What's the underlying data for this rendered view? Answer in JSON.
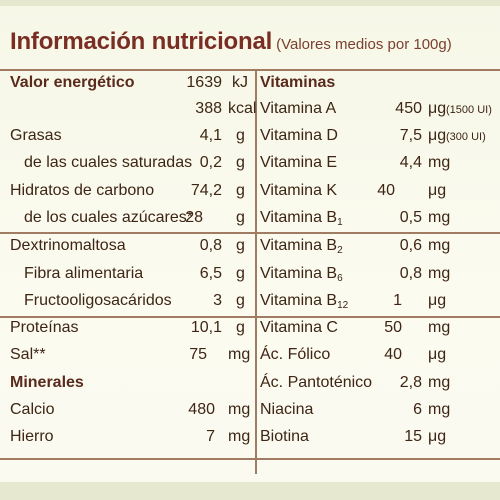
{
  "header": {
    "title": "Información nutricional",
    "subtitle": "(Valores medios por 100g)"
  },
  "left": {
    "energy": {
      "label": "Valor energético",
      "kj": "1639",
      "kj_unit": "kJ",
      "kcal": "388",
      "kcal_unit": "kcal"
    },
    "rows": [
      {
        "label": "Grasas",
        "value": "4,1",
        "unit": "g"
      },
      {
        "label": "de las cuales saturadas",
        "value": "0,2",
        "unit": "g"
      },
      {
        "label": "Hidratos de carbono",
        "value": "74,2",
        "unit": "g"
      },
      {
        "label": "de los cuales azúcares*",
        "value": "28",
        "unit": "g"
      },
      {
        "label": "Dextrinomaltosa",
        "value": "0,8",
        "unit": "g"
      },
      {
        "label": "Fibra alimentaria",
        "value": "6,5",
        "unit": "g"
      },
      {
        "label": "Fructooligosacáridos",
        "value": "3",
        "unit": "g"
      },
      {
        "label": "Proteínas",
        "value": "10,1",
        "unit": "g"
      },
      {
        "label": "Sal**",
        "value": "75",
        "unit": "mg"
      }
    ],
    "minerals_heading": "Minerales",
    "minerals": [
      {
        "label": "Calcio",
        "value": "480",
        "unit": "mg"
      },
      {
        "label": "Hierro",
        "value": "7",
        "unit": "mg"
      }
    ]
  },
  "right": {
    "heading": "Vitaminas",
    "rows": [
      {
        "label": "Vitamina A",
        "value": "450",
        "unit": "μg",
        "note": "(1500 UI)"
      },
      {
        "label": "Vitamina D",
        "value": "7,5",
        "unit": "μg",
        "note": "(300 UI)"
      },
      {
        "label": "Vitamina E",
        "value": "4,4",
        "unit": "mg"
      },
      {
        "label": "Vitamina K",
        "value": "40",
        "unit": "μg"
      },
      {
        "label": "Vitamina B",
        "sub": "1",
        "value": "0,5",
        "unit": "mg"
      },
      {
        "label": "Vitamina B",
        "sub": "2",
        "value": "0,6",
        "unit": "mg"
      },
      {
        "label": "Vitamina B",
        "sub": "6",
        "value": "0,8",
        "unit": "mg"
      },
      {
        "label": "Vitamina B",
        "sub": "12",
        "value": "1",
        "unit": "μg"
      },
      {
        "label": "Vitamina C",
        "value": "50",
        "unit": "mg"
      },
      {
        "label": "Ác. Fólico",
        "value": "40",
        "unit": "μg"
      },
      {
        "label": "Ác. Pantoténico",
        "value": "2,8",
        "unit": "mg"
      },
      {
        "label": "Niacina",
        "value": "6",
        "unit": "mg"
      },
      {
        "label": "Biotina",
        "value": "15",
        "unit": "μg"
      }
    ]
  }
}
